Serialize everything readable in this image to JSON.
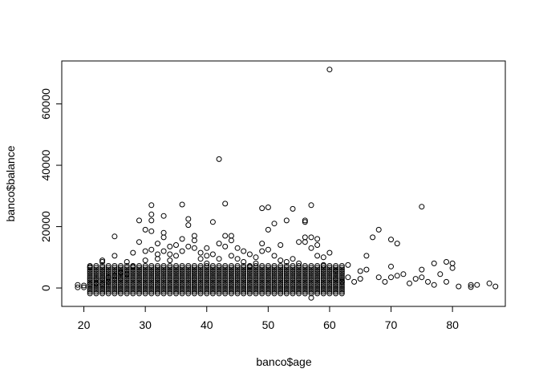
{
  "chart_data": {
    "type": "scatter",
    "title": "",
    "xlabel": "banco$age",
    "ylabel": "banco$balance",
    "xlim": [
      16.4,
      88.6
    ],
    "ylim": [
      -6000,
      74000
    ],
    "x_ticks": [
      20,
      30,
      40,
      50,
      60,
      70,
      80
    ],
    "y_ticks": [
      0,
      20000,
      40000,
      60000
    ],
    "x_tick_labels": [
      "20",
      "30",
      "40",
      "50",
      "60",
      "70",
      "80"
    ],
    "y_tick_labels": [
      "0",
      "20000",
      "40000",
      "60000"
    ],
    "grid": false,
    "legend": "none",
    "marker": "open-circle",
    "colors": {
      "points": "#000000",
      "axes": "#000000",
      "background": "#ffffff"
    },
    "points": [
      [
        19,
        1000
      ],
      [
        19,
        200
      ],
      [
        20,
        800
      ],
      [
        20,
        200
      ],
      [
        21,
        6800
      ],
      [
        21,
        1200
      ],
      [
        22,
        1500
      ],
      [
        22,
        3000
      ],
      [
        23,
        9000
      ],
      [
        23,
        8500
      ],
      [
        23,
        1200
      ],
      [
        24,
        2000
      ],
      [
        24,
        3500
      ],
      [
        25,
        16800
      ],
      [
        25,
        10500
      ],
      [
        25,
        4000
      ],
      [
        26,
        5000
      ],
      [
        26,
        3000
      ],
      [
        27,
        4500
      ],
      [
        27,
        8500
      ],
      [
        28,
        11500
      ],
      [
        28,
        7000
      ],
      [
        29,
        22000
      ],
      [
        29,
        15000
      ],
      [
        30,
        19000
      ],
      [
        30,
        12000
      ],
      [
        30,
        9000
      ],
      [
        31,
        27000
      ],
      [
        31,
        24000
      ],
      [
        31,
        22000
      ],
      [
        31,
        18500
      ],
      [
        31,
        12500
      ],
      [
        32,
        14500
      ],
      [
        32,
        11000
      ],
      [
        32,
        9500
      ],
      [
        33,
        23500
      ],
      [
        33,
        18000
      ],
      [
        33,
        16500
      ],
      [
        33,
        12000
      ],
      [
        34,
        13500
      ],
      [
        34,
        11000
      ],
      [
        34,
        9000
      ],
      [
        35,
        14000
      ],
      [
        35,
        10500
      ],
      [
        36,
        27200
      ],
      [
        36,
        16000
      ],
      [
        36,
        12000
      ],
      [
        37,
        22500
      ],
      [
        37,
        20500
      ],
      [
        37,
        13500
      ],
      [
        38,
        17000
      ],
      [
        38,
        15500
      ],
      [
        38,
        13000
      ],
      [
        39,
        11500
      ],
      [
        39,
        9500
      ],
      [
        40,
        13000
      ],
      [
        40,
        10500
      ],
      [
        40,
        8000
      ],
      [
        41,
        21500
      ],
      [
        41,
        11000
      ],
      [
        42,
        42000
      ],
      [
        42,
        14500
      ],
      [
        42,
        9500
      ],
      [
        43,
        27500
      ],
      [
        43,
        17000
      ],
      [
        43,
        13500
      ],
      [
        44,
        17000
      ],
      [
        44,
        15500
      ],
      [
        44,
        10500
      ],
      [
        45,
        13000
      ],
      [
        45,
        9500
      ],
      [
        46,
        12000
      ],
      [
        46,
        8500
      ],
      [
        47,
        11000
      ],
      [
        47,
        7000
      ],
      [
        48,
        10000
      ],
      [
        48,
        8000
      ],
      [
        49,
        26000
      ],
      [
        49,
        14500
      ],
      [
        49,
        12000
      ],
      [
        50,
        26300
      ],
      [
        50,
        19000
      ],
      [
        50,
        12500
      ],
      [
        51,
        21000
      ],
      [
        51,
        10500
      ],
      [
        52,
        14000
      ],
      [
        52,
        9000
      ],
      [
        53,
        22000
      ],
      [
        53,
        8500
      ],
      [
        54,
        25800
      ],
      [
        54,
        9500
      ],
      [
        55,
        15000
      ],
      [
        55,
        8000
      ],
      [
        56,
        22000
      ],
      [
        56,
        21500
      ],
      [
        56,
        16500
      ],
      [
        56,
        15000
      ],
      [
        57,
        27000
      ],
      [
        57,
        16500
      ],
      [
        57,
        13000
      ],
      [
        57,
        -3200
      ],
      [
        58,
        16000
      ],
      [
        58,
        14000
      ],
      [
        58,
        10500
      ],
      [
        59,
        10000
      ],
      [
        59,
        7500
      ],
      [
        60,
        71200
      ],
      [
        60,
        11500
      ],
      [
        61,
        5500
      ],
      [
        61,
        3000
      ],
      [
        62,
        2000
      ],
      [
        63,
        7500
      ],
      [
        63,
        3500
      ],
      [
        64,
        2000
      ],
      [
        65,
        5500
      ],
      [
        65,
        3000
      ],
      [
        66,
        10500
      ],
      [
        66,
        6000
      ],
      [
        67,
        16500
      ],
      [
        68,
        19000
      ],
      [
        68,
        3500
      ],
      [
        69,
        2000
      ],
      [
        70,
        15800
      ],
      [
        70,
        7000
      ],
      [
        70,
        3500
      ],
      [
        71,
        14500
      ],
      [
        71,
        4000
      ],
      [
        72,
        4500
      ],
      [
        73,
        1500
      ],
      [
        74,
        3000
      ],
      [
        75,
        26500
      ],
      [
        75,
        6000
      ],
      [
        75,
        3500
      ],
      [
        76,
        2000
      ],
      [
        77,
        8000
      ],
      [
        77,
        1000
      ],
      [
        78,
        4500
      ],
      [
        79,
        8500
      ],
      [
        79,
        2000
      ],
      [
        80,
        8000
      ],
      [
        80,
        6500
      ],
      [
        81,
        500
      ],
      [
        83,
        1000
      ],
      [
        83,
        300
      ],
      [
        84,
        1000
      ],
      [
        86,
        1500
      ],
      [
        87,
        500
      ]
    ],
    "dense_band": {
      "x_range": [
        21,
        62
      ],
      "y_range": [
        -1800,
        7500
      ],
      "x_step": 1,
      "y_step": 600
    }
  }
}
